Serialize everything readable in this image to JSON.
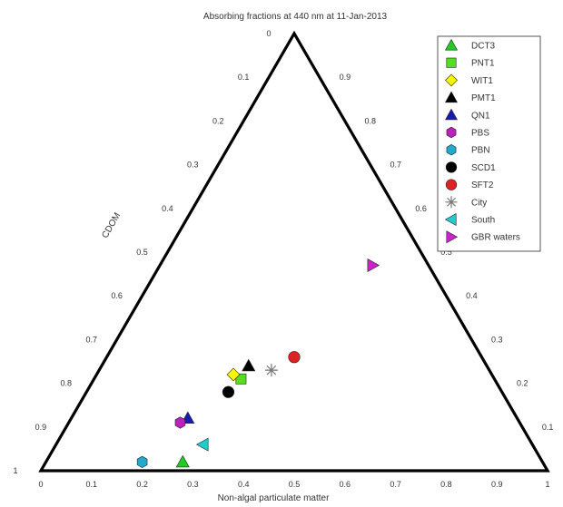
{
  "chart_data": {
    "type": "scatter",
    "subtype": "ternary",
    "title": "Absorbing fractions at 440 nm at 11-Jan-2013",
    "xlabel": "Non-algal particulate matter",
    "left_axis_label": "CDOM",
    "right_axis_label": "",
    "axis_range": [
      0,
      1
    ],
    "left_ticks": [
      "0",
      "0.1",
      "0.2",
      "0.3",
      "0.4",
      "0.5",
      "0.6",
      "0.7",
      "0.8",
      "0.9",
      "1"
    ],
    "right_ticks": [
      "0.9",
      "0.8",
      "0.7",
      "0.6",
      "0.5",
      "0.4",
      "0.3",
      "0.2",
      "0.1",
      "0"
    ],
    "bottom_ticks": [
      "0",
      "0.1",
      "0.2",
      "0.3",
      "0.4",
      "0.5",
      "0.6",
      "0.7",
      "0.8",
      "0.9",
      "1"
    ],
    "grid": false,
    "legend_position": "top-right",
    "series": [
      {
        "name": "DCT3",
        "marker": "triangle-up",
        "color": "#22cc22",
        "nap": 0.27,
        "cdom": 0.98
      },
      {
        "name": "PNT1",
        "marker": "square",
        "color": "#55dd22",
        "nap": 0.29,
        "cdom": 0.79
      },
      {
        "name": "WIT1",
        "marker": "diamond",
        "color": "#f5f500",
        "nap": 0.27,
        "cdom": 0.78
      },
      {
        "name": "PMT1",
        "marker": "triangle-up",
        "color": "#000000",
        "nap": 0.29,
        "cdom": 0.76
      },
      {
        "name": "QN1",
        "marker": "triangle-up",
        "color": "#1a1ab0",
        "nap": 0.23,
        "cdom": 0.88
      },
      {
        "name": "PBS",
        "marker": "hexagon",
        "color": "#bb22bb",
        "nap": 0.22,
        "cdom": 0.89
      },
      {
        "name": "PBN",
        "marker": "hexagon",
        "color": "#22aacc",
        "nap": 0.19,
        "cdom": 0.98
      },
      {
        "name": "SCD1",
        "marker": "circle",
        "color": "#000000",
        "nap": 0.28,
        "cdom": 0.82
      },
      {
        "name": "SFT2",
        "marker": "circle",
        "color": "#dd2222",
        "nap": 0.37,
        "cdom": 0.74
      },
      {
        "name": "City",
        "marker": "asterisk",
        "color": "#777777",
        "nap": 0.34,
        "cdom": 0.77
      },
      {
        "name": "South",
        "marker": "triangle-left",
        "color": "#22cccc",
        "nap": 0.29,
        "cdom": 0.94
      },
      {
        "name": "GBR waters",
        "marker": "triangle-right",
        "color": "#cc22cc",
        "nap": 0.42,
        "cdom": 0.53
      }
    ]
  }
}
